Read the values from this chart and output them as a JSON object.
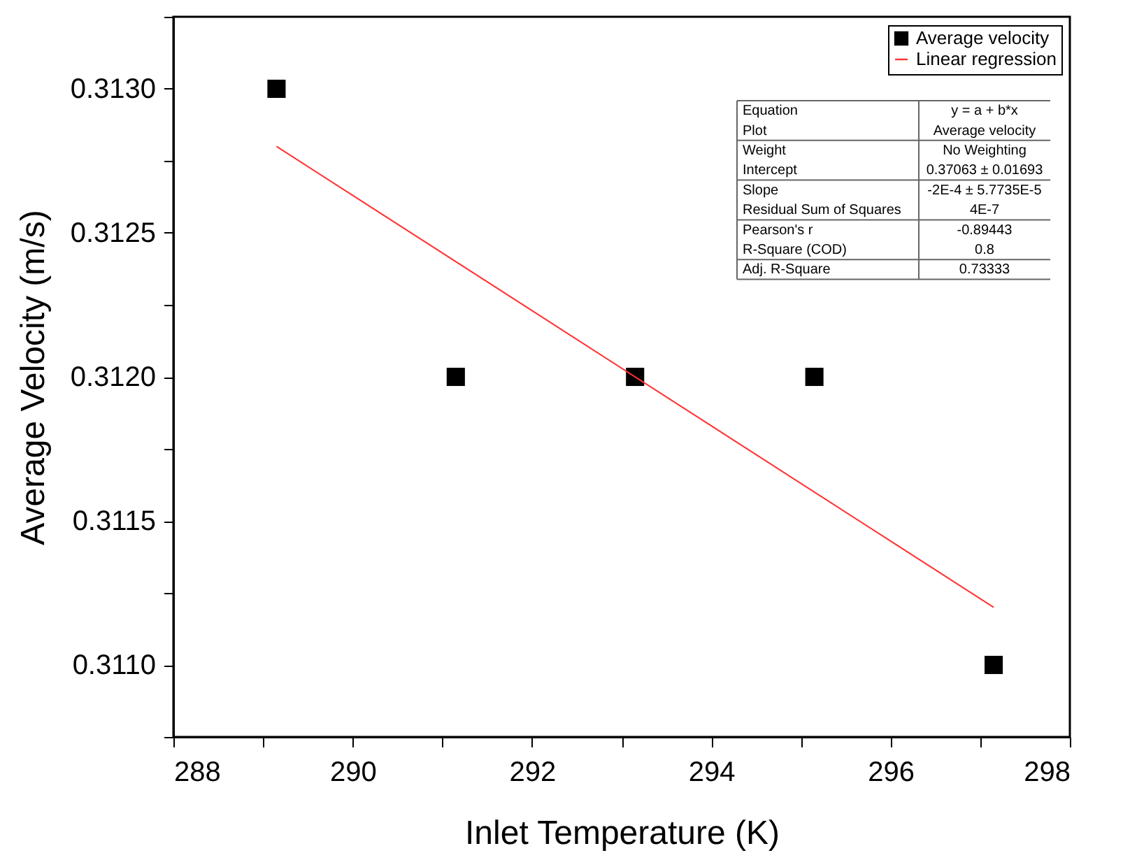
{
  "chart_data": {
    "type": "scatter",
    "xlabel": "Inlet Temperature (K)",
    "ylabel": "Average Velocity (m/s)",
    "series": [
      {
        "name": "Average velocity",
        "type": "scatter",
        "color": "#000000",
        "marker": "square",
        "x": [
          289.15,
          291.15,
          293.15,
          295.15,
          297.15
        ],
        "values": [
          0.313,
          0.312,
          0.312,
          0.312,
          0.311
        ]
      },
      {
        "name": "Linear regression",
        "type": "line",
        "color": "#ff3333",
        "line_style": "solid",
        "x": [
          289.15,
          297.15
        ],
        "values": [
          0.3128,
          0.3112
        ]
      }
    ],
    "xlim": [
      288,
      298
    ],
    "xticks": [
      288,
      {
        "value": 289,
        "label": null
      },
      290,
      {
        "value": 291,
        "label": null
      },
      292,
      {
        "value": 293,
        "label": null
      },
      294,
      {
        "value": 295,
        "label": null
      },
      296,
      {
        "value": 297,
        "label": null
      },
      298
    ],
    "ylim": [
      0.31075,
      0.31325
    ],
    "yticks": [
      {
        "value": 0.31075,
        "label": null
      },
      {
        "value": 0.311,
        "label": "0.3110"
      },
      {
        "value": 0.31125,
        "label": null
      },
      {
        "value": 0.3115,
        "label": "0.3115"
      },
      {
        "value": 0.31175,
        "label": null
      },
      {
        "value": 0.312,
        "label": "0.3120"
      },
      {
        "value": 0.31225,
        "label": null
      },
      {
        "value": 0.3125,
        "label": "0.3125"
      },
      {
        "value": 0.31275,
        "label": null
      },
      {
        "value": 0.313,
        "label": "0.3130"
      },
      {
        "value": 0.31325,
        "label": null
      }
    ],
    "grid": false,
    "legend": "top right",
    "annotations": [
      "Equation",
      "y = a + b*x",
      "Plot",
      "Average velocity",
      "Weight",
      "No Weighting",
      "Intercept",
      "0.37063 ± 0.01693",
      "Slope",
      "-2E-4 ± 5.7735E-5",
      "Residual Sum of Squares",
      "4E-7",
      "Pearson's r",
      "-0.89443",
      "R-Square (COD)",
      "0.8",
      "Adj. R-Square",
      "0.73333"
    ]
  }
}
